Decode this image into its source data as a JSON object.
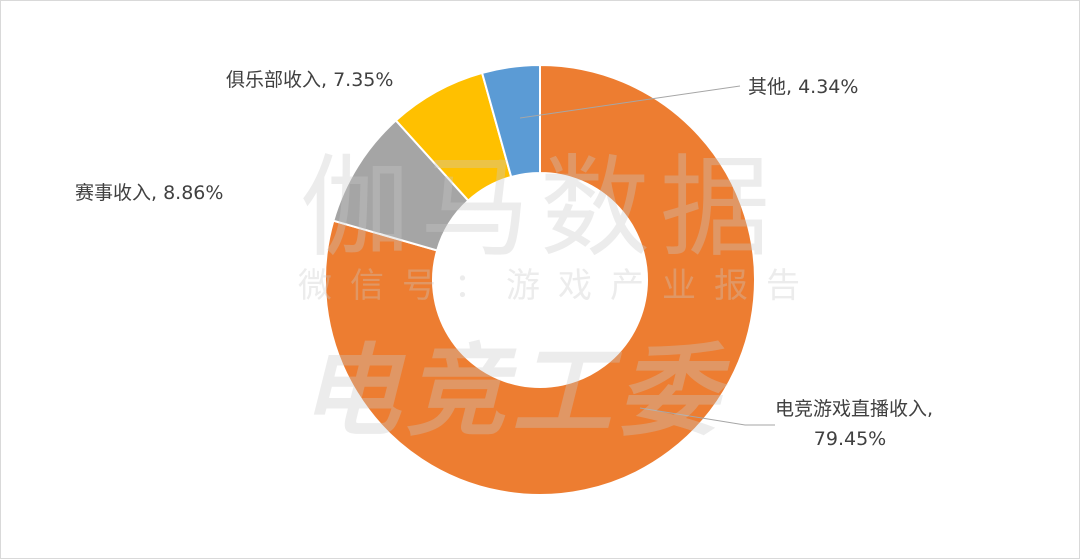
{
  "chart_data": {
    "type": "pie",
    "donut": true,
    "values": [
      79.45,
      8.86,
      7.35,
      4.34
    ],
    "value_labels": [
      "电竞游戏直播收入, 79.45%",
      "赛事收入, 8.86%",
      "俱乐部收入, 7.35%",
      "其他, 4.34%"
    ],
    "colors": [
      "#ed7d31",
      "#a5a5a5",
      "#ffc000",
      "#5b9bd5"
    ]
  },
  "watermark": {
    "line1": "伽马数据",
    "line2": "微信号：游戏产业报告",
    "line3": "电竞工委"
  }
}
